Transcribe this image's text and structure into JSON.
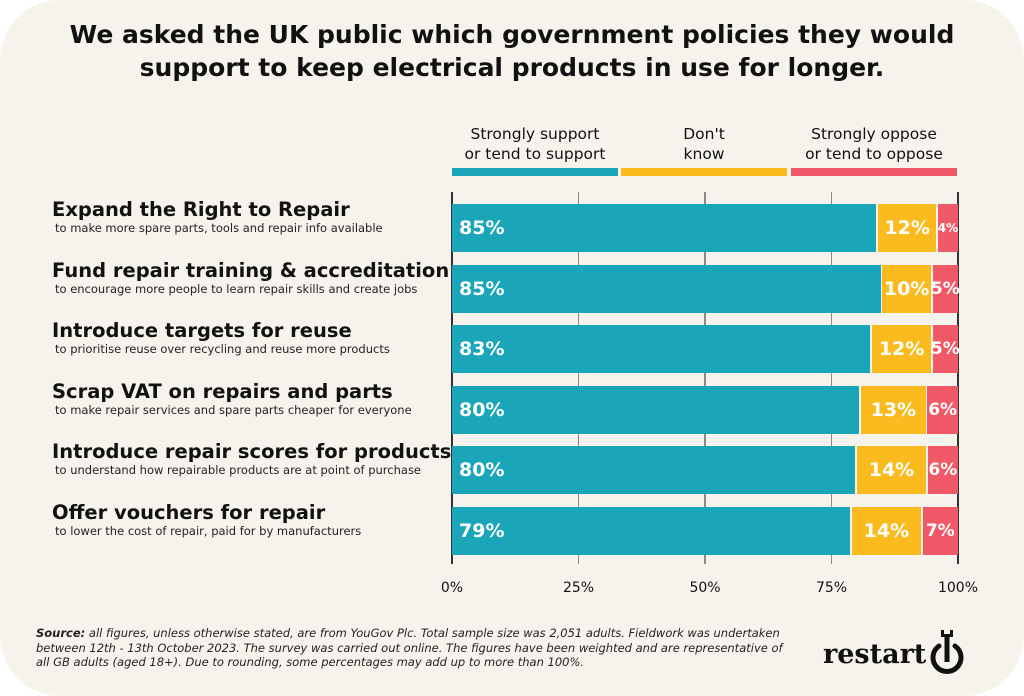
{
  "chart_data": {
    "type": "bar",
    "orientation": "horizontal-stacked",
    "title": "We asked the UK public which government policies they would support to keep electrical products in use for longer.",
    "legend": [
      "Strongly support or tend to support",
      "Don't know",
      "Strongly oppose or tend to oppose"
    ],
    "legend_placement": "top",
    "colors": [
      "#1ba5b8",
      "#fbbb1e",
      "#f05a68"
    ],
    "categories": [
      {
        "main": "Expand the Right to Repair",
        "sub": "to make more spare parts, tools and repair info available"
      },
      {
        "main": "Fund repair training & accreditation",
        "sub": "to encourage more people to learn repair skills and create jobs"
      },
      {
        "main": "Introduce targets for reuse",
        "sub": "to prioritise reuse over recycling and reuse more products"
      },
      {
        "main": "Scrap VAT on repairs and parts",
        "sub": "to make repair services and spare parts cheaper for everyone"
      },
      {
        "main": "Introduce repair scores for products",
        "sub": "to understand how repairable products are at point of purchase"
      },
      {
        "main": "Offer vouchers for repair",
        "sub": "to lower the cost of repair, paid for by manufacturers"
      }
    ],
    "series": [
      {
        "name": "Support",
        "values": [
          85,
          85,
          83,
          80,
          80,
          79
        ]
      },
      {
        "name": "Don't know",
        "values": [
          12,
          10,
          12,
          13,
          14,
          14
        ]
      },
      {
        "name": "Oppose",
        "values": [
          4,
          5,
          5,
          6,
          6,
          7
        ]
      }
    ],
    "xlim": [
      0,
      100
    ],
    "xticks": [
      "0%",
      "25%",
      "50%",
      "75%",
      "100%"
    ]
  },
  "title_line1": "We asked the UK public which government policies they would",
  "title_line2": "support to keep electrical products in use for longer.",
  "legend": {
    "support": [
      "Strongly support",
      "or tend to support"
    ],
    "dontknow": [
      "Don't",
      "know"
    ],
    "oppose": [
      "Strongly oppose",
      "or tend to oppose"
    ]
  },
  "source": {
    "label": "Source:",
    "text": " all figures, unless otherwise stated, are from YouGov Plc. Total sample size was 2,051 adults. Fieldwork was undertaken between 12th - 13th October 2023. The survey was carried out online. The figures have been weighted and are representative of all GB adults (aged 18+). Due to rounding, some percentages may add up to more than 100%."
  },
  "logo": "restart"
}
